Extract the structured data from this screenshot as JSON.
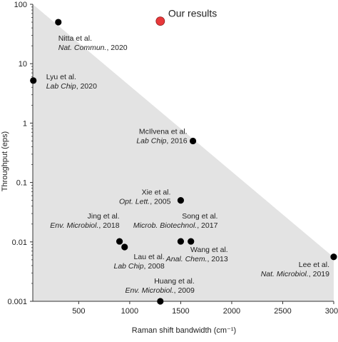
{
  "chart_data": {
    "type": "scatter",
    "title": "",
    "xlabel": "Raman shift bandwidth (cm⁻¹)",
    "ylabel": "Throughput (eps)",
    "xlim": [
      50,
      3000
    ],
    "ylim": [
      0.001,
      100
    ],
    "yscale": "log",
    "x_ticks": [
      500,
      1000,
      1500,
      2000,
      2500,
      3000
    ],
    "x_tick_labels": [
      "500",
      "1000",
      "1500",
      "2000",
      "2500",
      "3000"
    ],
    "y_ticks": [
      0.001,
      0.01,
      0.1,
      1,
      10,
      100
    ],
    "y_tick_labels": [
      "0.001",
      "0.01",
      "0.1",
      "1",
      "10",
      "100"
    ],
    "grid": false,
    "shaded_region": {
      "color": "#e3e3e3",
      "vertices": [
        [
          50,
          100
        ],
        [
          3000,
          0.0055
        ],
        [
          3000,
          0.001
        ],
        [
          50,
          0.001
        ]
      ]
    },
    "colors": {
      "points": "#000000",
      "highlight": "#e8383a",
      "shade": "#e3e3e3"
    },
    "points": [
      {
        "x": 300,
        "y": 50,
        "line1": "Nitta et al.",
        "line2": "Nat. Commun.",
        "line2_suffix": ", 2020"
      },
      {
        "x": 55,
        "y": 5.2,
        "line1": "Lyu et al.",
        "line2": "Lab Chip",
        "line2_suffix": ", 2020"
      },
      {
        "x": 1620,
        "y": 0.5,
        "line1": "McIlvena et al.",
        "line2": "Lab Chip",
        "line2_suffix": ", 2016"
      },
      {
        "x": 1500,
        "y": 0.05,
        "line1": "Xie et al.",
        "line2": "Opt. Lett.",
        "line2_suffix": ", 2005"
      },
      {
        "x": 900,
        "y": 0.0102,
        "line1": "Jing et al.",
        "line2": "Env. Microbiol.",
        "line2_suffix": ", 2018"
      },
      {
        "x": 950,
        "y": 0.0082,
        "line1": "Lau et al.",
        "line2": "Lab Chip",
        "line2_suffix": ", 2008"
      },
      {
        "x": 1500,
        "y": 0.0102,
        "line1": "Song et al.",
        "line2": "Microb. Biotechnol.",
        "line2_suffix": ", 2017"
      },
      {
        "x": 1600,
        "y": 0.0102,
        "line1": "Wang et al.",
        "line2": "Anal. Chem.",
        "line2_suffix": ", 2013"
      },
      {
        "x": 3000,
        "y": 0.0056,
        "line1": "Lee et al.",
        "line2": "Nat. Microbiol.",
        "line2_suffix": ", 2019"
      },
      {
        "x": 1300,
        "y": 0.001,
        "line1": "Huang et al.",
        "line2": "Env. Microbiol.",
        "line2_suffix": ", 2009"
      }
    ],
    "highlight": {
      "x": 1300,
      "y": 52,
      "label": "Our results"
    }
  }
}
